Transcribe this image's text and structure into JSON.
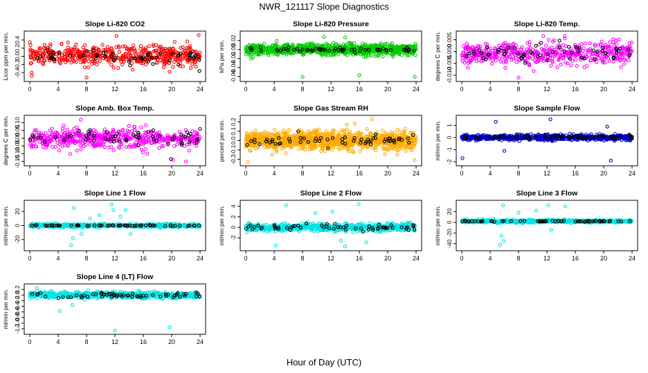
{
  "figure": {
    "title": "NWR_121117  Slope Diagnostics",
    "xlabel": "Hour of Day (UTC)"
  },
  "chart_data": [
    {
      "id": "p1",
      "type": "scatter",
      "title": "Slope Li-820 CO2",
      "ylabel": "Licor ppm per min.",
      "xlim": [
        0,
        24
      ],
      "xticks": [
        0,
        4,
        8,
        12,
        16,
        20,
        24
      ],
      "ylim": [
        -0.55,
        0.55
      ],
      "yticks": [
        -0.4,
        -0.2,
        0.0,
        0.2,
        0.4
      ],
      "ytick_labels": [
        "-0.4",
        "-0.2",
        "0.0",
        "0.2",
        "0.4"
      ],
      "color": "#ff0000",
      "marker_bg": "#ffffff",
      "series": [
        {
          "n": 520,
          "center": 0.02,
          "spread": 0.2,
          "outliers": [
            [
              0.3,
              -0.48
            ],
            [
              8.0,
              -0.52
            ],
            [
              12.2,
              0.5
            ],
            [
              23.8,
              0.52
            ],
            [
              19.7,
              -0.38
            ]
          ]
        },
        {
          "n": 60,
          "center": -0.02,
          "spread": 0.12,
          "color": "#000000",
          "outliers": [
            [
              23.9,
              -0.36
            ]
          ]
        }
      ]
    },
    {
      "id": "p2",
      "type": "scatter",
      "title": "Slope Li-820 Pressure",
      "ylabel": "kPa per min.",
      "xlim": [
        0,
        24
      ],
      "xticks": [
        0,
        4,
        8,
        12,
        16,
        20,
        24
      ],
      "ylim": [
        -0.065,
        0.035
      ],
      "yticks": [
        -0.06,
        -0.04,
        -0.02,
        0.0,
        0.02
      ],
      "ytick_labels": [
        "-0.06",
        "-0.04",
        "-0.02",
        "0.00",
        "0.02"
      ],
      "color": "#00cc00",
      "series": [
        {
          "n": 900,
          "center": 0.0,
          "spread": 0.01,
          "outliers": [
            [
              8.0,
              -0.061
            ],
            [
              16.0,
              -0.057
            ],
            [
              23.8,
              -0.061
            ],
            [
              11.0,
              0.028
            ],
            [
              14.0,
              0.027
            ]
          ]
        },
        {
          "n": 60,
          "center": 0.0,
          "spread": 0.004,
          "color": "#000000",
          "outliers": []
        }
      ]
    },
    {
      "id": "p3",
      "type": "scatter",
      "title": "Slope Li-820 Temp.",
      "ylabel": "degrees C per min.",
      "xlim": [
        0,
        24
      ],
      "xticks": [
        0,
        4,
        8,
        12,
        16,
        20,
        24
      ],
      "ylim": [
        -0.0115,
        0.0075
      ],
      "yticks": [
        -0.01,
        -0.005,
        0.0,
        0.005
      ],
      "ytick_labels": [
        "-0.010",
        "-0.005",
        "0.000",
        "0.005"
      ],
      "extra_ticks": [
        -0.005,
        0.005
      ],
      "color": "#ff00ff",
      "series": [
        {
          "n": 520,
          "center": -0.001,
          "spread": 0.004,
          "outliers": [
            [
              8.0,
              -0.011
            ],
            [
              11.5,
              0.0065
            ],
            [
              14.5,
              0.0065
            ]
          ]
        },
        {
          "n": 60,
          "center": -0.001,
          "spread": 0.003,
          "color": "#000000",
          "outliers": []
        }
      ]
    },
    {
      "id": "p4",
      "type": "scatter",
      "title": "Slope Amb. Box Temp.",
      "ylabel": "degrees C per min.",
      "xlim": [
        0,
        24
      ],
      "xticks": [
        0,
        4,
        8,
        12,
        16,
        20,
        24
      ],
      "ylim": [
        -0.16,
        0.13
      ],
      "yticks": [
        -0.15,
        -0.1,
        -0.05,
        0.0,
        0.05,
        0.1
      ],
      "ytick_labels": [
        "-0.15",
        "-0.10",
        "-0.05",
        "0.00",
        "0.05",
        "0.10"
      ],
      "color": "#ff00ff",
      "series": [
        {
          "n": 520,
          "center": 0.0,
          "spread": 0.05,
          "outliers": [
            [
              20.2,
              -0.14
            ],
            [
              22.0,
              -0.15
            ],
            [
              7.2,
              0.12
            ]
          ]
        },
        {
          "n": 60,
          "center": 0.01,
          "spread": 0.04,
          "color": "#000000",
          "outliers": [
            [
              19.9,
              -0.135
            ]
          ]
        }
      ]
    },
    {
      "id": "p5",
      "type": "scatter",
      "title": "Slope Gas Stream RH",
      "ylabel": "percent per min.",
      "xlim": [
        0,
        24
      ],
      "xticks": [
        0,
        4,
        8,
        12,
        16,
        20,
        24
      ],
      "ylim": [
        -0.24,
        0.24
      ],
      "yticks": [
        -0.2,
        -0.1,
        0.0,
        0.1,
        0.2
      ],
      "ytick_labels": [
        "-0.2",
        "-0.1",
        "0.0",
        "0.1",
        "0.2"
      ],
      "color": "#ffaa00",
      "series": [
        {
          "n": 1100,
          "center": 0.0,
          "spread": 0.08,
          "outliers": [
            [
              0.3,
              -0.23
            ],
            [
              17.8,
              0.23
            ],
            [
              23.8,
              -0.21
            ]
          ]
        },
        {
          "n": 60,
          "center": 0.0,
          "spread": 0.05,
          "color": "#000000",
          "outliers": []
        }
      ]
    },
    {
      "id": "p6",
      "type": "scatter",
      "title": "Slope Sample Flow",
      "ylabel": "ml/min per min.",
      "xlim": [
        0,
        24
      ],
      "xticks": [
        0,
        4,
        8,
        12,
        16,
        20,
        24
      ],
      "ylim": [
        -2.1,
        1.6
      ],
      "yticks": [
        -2,
        -1,
        0,
        1
      ],
      "ytick_labels": [
        "-2",
        "-1",
        "0",
        "1"
      ],
      "color": "#0000cc",
      "series": [
        {
          "n": 700,
          "center": 0.0,
          "spread": 0.18,
          "outliers": [
            [
              0.1,
              -1.7
            ],
            [
              4.8,
              1.3
            ],
            [
              12.5,
              1.5
            ],
            [
              21.0,
              -1.9
            ],
            [
              6.0,
              -1.1
            ],
            [
              20.5,
              0.9
            ]
          ]
        },
        {
          "n": 60,
          "center": 0.05,
          "spread": 0.12,
          "color": "#000000",
          "outliers": []
        }
      ]
    },
    {
      "id": "p7",
      "type": "scatter",
      "title": "Slope Line 1 Flow",
      "ylabel": "ml/min per min.",
      "xlim": [
        0,
        24
      ],
      "xticks": [
        0,
        4,
        8,
        12,
        16,
        20,
        24
      ],
      "ylim": [
        -32,
        32
      ],
      "yticks": [
        -20,
        0,
        20
      ],
      "ytick_labels": [
        "-20",
        "0",
        "20"
      ],
      "color": "#00e5e5",
      "series": [
        {
          "n": 650,
          "center": 0.0,
          "spread": 2.0,
          "outliers": [
            [
              6.2,
              25
            ],
            [
              5.8,
              -28
            ],
            [
              6.1,
              -18
            ],
            [
              8.5,
              10
            ],
            [
              11.5,
              30
            ],
            [
              11.8,
              22
            ],
            [
              12.8,
              13
            ],
            [
              14.2,
              -12
            ],
            [
              13.5,
              22
            ],
            [
              7.3,
              -12
            ],
            [
              9.8,
              15
            ]
          ]
        },
        {
          "n": 60,
          "center": 0.0,
          "spread": 0.5,
          "color": "#000000",
          "outliers": []
        }
      ]
    },
    {
      "id": "p8",
      "type": "scatter",
      "title": "Slope Line 2 Flow",
      "ylabel": "ml/min per min.",
      "xlim": [
        0,
        24
      ],
      "xticks": [
        0,
        4,
        8,
        12,
        16,
        20,
        24
      ],
      "ylim": [
        -3.9,
        4.6
      ],
      "yticks": [
        -2,
        0,
        2,
        4
      ],
      "ytick_labels": [
        "-2",
        "0",
        "2",
        "4"
      ],
      "color": "#00e5e5",
      "series": [
        {
          "n": 650,
          "center": 0.0,
          "spread": 0.6,
          "outliers": [
            [
              5.7,
              4.2
            ],
            [
              15.9,
              4.4
            ],
            [
              14.0,
              -3.6
            ],
            [
              13.4,
              -2.5
            ],
            [
              4.2,
              -3.4
            ],
            [
              17.0,
              -2.8
            ],
            [
              12.2,
              3.0
            ],
            [
              9.8,
              2.7
            ]
          ]
        },
        {
          "n": 60,
          "center": 0.0,
          "spread": 0.5,
          "color": "#000000",
          "outliers": []
        }
      ]
    },
    {
      "id": "p9",
      "type": "scatter",
      "title": "Slope Line 3 Flow",
      "ylabel": "ml/min per min.",
      "xlim": [
        0,
        24
      ],
      "xticks": [
        0,
        4,
        8,
        12,
        16,
        20,
        24
      ],
      "ylim": [
        -48,
        36
      ],
      "yticks": [
        -40,
        -20,
        0,
        20
      ],
      "ytick_labels": [
        "-40",
        "-20",
        "0",
        "20"
      ],
      "color": "#00e5e5",
      "series": [
        {
          "n": 650,
          "center": 2.0,
          "spread": 2.2,
          "outliers": [
            [
              5.8,
              32
            ],
            [
              5.6,
              -25
            ],
            [
              5.4,
              -42
            ],
            [
              5.9,
              -35
            ],
            [
              12.2,
              32
            ],
            [
              14.6,
              30
            ],
            [
              12.6,
              -14
            ],
            [
              8.0,
              18
            ],
            [
              10.5,
              22
            ]
          ]
        },
        {
          "n": 60,
          "center": 2.0,
          "spread": 0.8,
          "color": "#000000",
          "outliers": []
        }
      ]
    },
    {
      "id": "p10",
      "type": "scatter",
      "title": "Slope Line 4 (LT) Flow",
      "ylabel": "ml/min per min.",
      "xlim": [
        0,
        24
      ],
      "xticks": [
        0,
        4,
        8,
        12,
        16,
        20,
        24
      ],
      "ylim": [
        -1.3,
        0.3
      ],
      "yticks": [
        -1.2,
        -1.0,
        -0.8,
        -0.6,
        -0.4,
        -0.2,
        0.0,
        0.2
      ],
      "ytick_labels": [
        "-1.2",
        "-1.0",
        "-0.8",
        "-0.6",
        "-0.4",
        "-0.2",
        "0.0",
        "0.2"
      ],
      "color": "#00e5e5",
      "series": [
        {
          "n": 650,
          "center": 0.0,
          "spread": 0.09,
          "outliers": [
            [
              4.2,
              -0.57
            ],
            [
              12.0,
              -1.27
            ],
            [
              19.7,
              -1.15
            ],
            [
              1.0,
              0.25
            ],
            [
              6.0,
              -0.35
            ]
          ]
        },
        {
          "n": 60,
          "center": 0.0,
          "spread": 0.07,
          "color": "#000000",
          "outliers": []
        }
      ]
    }
  ]
}
